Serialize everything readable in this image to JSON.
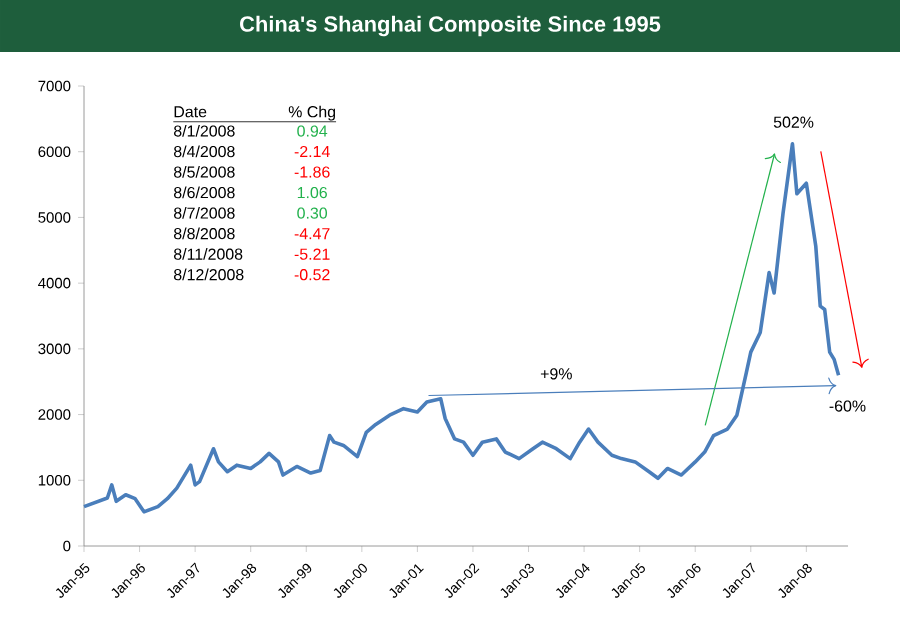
{
  "chart_data": {
    "type": "line",
    "title": "China's Shanghai Composite Since 1995",
    "color": "#4a7ebb",
    "x": [
      "1995-01",
      "1995-06",
      "1995-07",
      "1995-08",
      "1995-10",
      "1995-12",
      "1996-02",
      "1996-05",
      "1996-07",
      "1996-09",
      "1996-12",
      "1997-01",
      "1997-02",
      "1997-05",
      "1997-06",
      "1997-08",
      "1997-10",
      "1998-01",
      "1998-03",
      "1998-05",
      "1998-07",
      "1998-08",
      "1998-11",
      "1999-02",
      "1999-04",
      "1999-06",
      "1999-07",
      "1999-09",
      "1999-12",
      "2000-02",
      "2000-04",
      "2000-07",
      "2000-10",
      "2001-01",
      "2001-03",
      "2001-06",
      "2001-07",
      "2001-09",
      "2001-11",
      "2002-01",
      "2002-03",
      "2002-06",
      "2002-08",
      "2002-11",
      "2003-02",
      "2003-04",
      "2003-07",
      "2003-10",
      "2003-12",
      "2004-02",
      "2004-04",
      "2004-07",
      "2004-09",
      "2004-12",
      "2005-03",
      "2005-05",
      "2005-07",
      "2005-10",
      "2006-01",
      "2006-03",
      "2006-05",
      "2006-08",
      "2006-10",
      "2006-12",
      "2007-01",
      "2007-03",
      "2007-05",
      "2007-06",
      "2007-08",
      "2007-10",
      "2007-11",
      "2008-01",
      "2008-03",
      "2008-04",
      "2008-05",
      "2008-06",
      "2008-07",
      "2008-08"
    ],
    "values": [
      600,
      730,
      930,
      680,
      780,
      720,
      520,
      600,
      720,
      880,
      1230,
      930,
      980,
      1480,
      1280,
      1130,
      1230,
      1180,
      1280,
      1410,
      1280,
      1080,
      1210,
      1110,
      1150,
      1680,
      1580,
      1530,
      1360,
      1730,
      1850,
      1990,
      2090,
      2040,
      2190,
      2240,
      1940,
      1630,
      1580,
      1380,
      1580,
      1630,
      1430,
      1330,
      1480,
      1580,
      1480,
      1330,
      1580,
      1780,
      1580,
      1380,
      1330,
      1280,
      1130,
      1030,
      1180,
      1080,
      1280,
      1430,
      1680,
      1780,
      1990,
      2640,
      2950,
      3250,
      4160,
      3850,
      5060,
      6120,
      5360,
      5520,
      4560,
      3650,
      3600,
      2950,
      2840,
      2600
    ],
    "xlim": [
      "1995-01",
      "2008-10"
    ],
    "xticks": [
      {
        "value": "1995-01",
        "label": "Jan-95"
      },
      {
        "value": "1996-01",
        "label": "Jan-96"
      },
      {
        "value": "1997-01",
        "label": "Jan-97"
      },
      {
        "value": "1998-01",
        "label": "Jan-98"
      },
      {
        "value": "1999-01",
        "label": "Jan-99"
      },
      {
        "value": "2000-01",
        "label": "Jan-00"
      },
      {
        "value": "2001-01",
        "label": "Jan-01"
      },
      {
        "value": "2002-01",
        "label": "Jan-02"
      },
      {
        "value": "2003-01",
        "label": "Jan-03"
      },
      {
        "value": "2004-01",
        "label": "Jan-04"
      },
      {
        "value": "2005-01",
        "label": "Jan-05"
      },
      {
        "value": "2006-01",
        "label": "Jan-06"
      },
      {
        "value": "2007-01",
        "label": "Jan-07"
      },
      {
        "value": "2008-01",
        "label": "Jan-08"
      }
    ],
    "ylim": [
      0,
      7000
    ],
    "yticks": [
      0,
      1000,
      2000,
      3000,
      4000,
      5000,
      6000,
      7000
    ],
    "annotations": [
      "Date",
      "% Chg",
      "8/1/2008",
      "0.94",
      "8/4/2008",
      "-2.14",
      "8/5/2008",
      "-1.86",
      "8/6/2008",
      "1.06",
      "8/7/2008",
      "0.30",
      "8/8/2008",
      "-4.47",
      "8/11/2008",
      "-5.21",
      "8/12/2008",
      "-0.52",
      "+9%",
      "502%",
      "-60%"
    ]
  }
}
